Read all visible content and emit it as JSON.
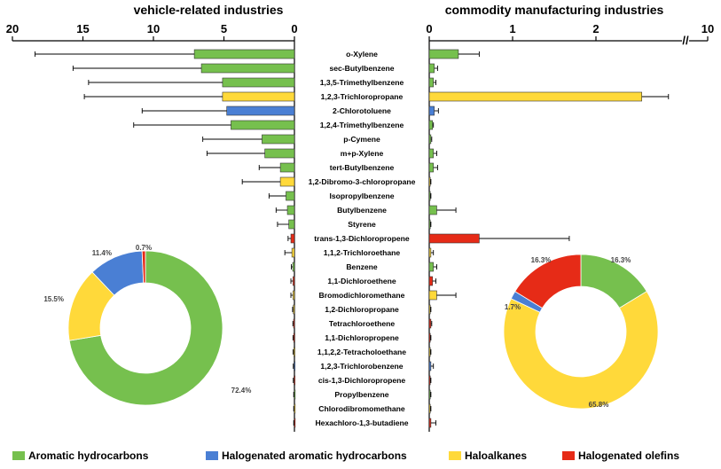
{
  "chart_data": {
    "type": "bar",
    "colors": {
      "Aromatic hydrocarbons": "#76c04e",
      "Halogenated aromatic hydrocarbons": "#4a7fd4",
      "Haloalkanes": "#ffd93a",
      "Halogenated olefins": "#e62b17"
    },
    "left_panel": {
      "title": "vehicle-related industries",
      "ticks": [
        "20",
        "15",
        "10",
        "5",
        "0"
      ],
      "xlim": [
        0,
        20
      ]
    },
    "right_panel": {
      "title": "commodity manufacturing industries",
      "ticks": [
        "0",
        "1",
        "2",
        "10"
      ],
      "axis_break": "//"
    },
    "categories": [
      "o-Xylene",
      "sec-Butylbenzene",
      "1,3,5-Trimethylbenzene",
      "1,2,3-Trichloropropane",
      "2-Chlorotoluene",
      "1,2,4-Trimethylbenzene",
      "p-Cymene",
      "m+p-Xylene",
      "tert-Butylbenzene",
      "1,2-Dibromo-3-chloropropane",
      "Isopropylbenzene",
      "Butylbenzene",
      "Styrene",
      "trans-1,3-Dichloropropene",
      "1,1,2-Trichloroethane",
      "Benzene",
      "1,1-Dichloroethene",
      "Bromodichloromethane",
      "1,2-Dichloropropane",
      "Tetrachloroethene",
      "1,1-Dichloropropene",
      "1,1,2,2-Tetracholoethane",
      "1,2,3-Trichlorobenzene",
      "cis-1,3-Dichloropropene",
      "Propylbenzene",
      "Chlorodibromomethane",
      "Hexachloro-1,3-butadiene"
    ],
    "groups": [
      "Aromatic hydrocarbons",
      "Aromatic hydrocarbons",
      "Aromatic hydrocarbons",
      "Haloalkanes",
      "Halogenated aromatic hydrocarbons",
      "Aromatic hydrocarbons",
      "Aromatic hydrocarbons",
      "Aromatic hydrocarbons",
      "Aromatic hydrocarbons",
      "Haloalkanes",
      "Aromatic hydrocarbons",
      "Aromatic hydrocarbons",
      "Aromatic hydrocarbons",
      "Halogenated olefins",
      "Haloalkanes",
      "Aromatic hydrocarbons",
      "Halogenated olefins",
      "Haloalkanes",
      "Haloalkanes",
      "Halogenated olefins",
      "Halogenated olefins",
      "Haloalkanes",
      "Halogenated aromatic hydrocarbons",
      "Halogenated olefins",
      "Aromatic hydrocarbons",
      "Haloalkanes",
      "Halogenated olefins"
    ],
    "vehicle_values": [
      7.1,
      6.6,
      5.1,
      5.1,
      4.8,
      4.5,
      2.3,
      2.1,
      1.0,
      1.0,
      0.6,
      0.5,
      0.4,
      0.25,
      0.18,
      0.12,
      0.1,
      0.1,
      0.08,
      0.06,
      0.05,
      0.04,
      0.03,
      0.03,
      0.02,
      0.02,
      0.02
    ],
    "vehicle_errors": [
      11.3,
      9.1,
      9.5,
      9.8,
      6.0,
      6.9,
      4.2,
      4.1,
      1.5,
      2.7,
      1.2,
      0.8,
      0.8,
      0.2,
      0.5,
      0.1,
      0.15,
      0.15,
      0.05,
      0.05,
      0.05,
      0.05,
      0.05,
      0.05,
      0.03,
      0.03,
      0.03
    ],
    "commodity_values": [
      0.35,
      0.06,
      0.05,
      2.55,
      0.06,
      0.04,
      0.02,
      0.05,
      0.05,
      0.01,
      0.01,
      0.09,
      0.01,
      0.6,
      0.02,
      0.05,
      0.04,
      0.09,
      0.01,
      0.02,
      0.01,
      0.01,
      0.02,
      0.01,
      0.01,
      0.01,
      0.02
    ],
    "commodity_errors": [
      0.25,
      0.04,
      0.03,
      0.32,
      0.05,
      0.01,
      0.01,
      0.04,
      0.05,
      0.01,
      0.01,
      0.23,
      0.01,
      1.08,
      0.03,
      0.04,
      0.04,
      0.23,
      0.01,
      0.01,
      0.01,
      0.01,
      0.03,
      0.01,
      0.01,
      0.01,
      0.06
    ],
    "pie_vehicle": [
      {
        "group": "Aromatic hydrocarbons",
        "value": 72.4,
        "label": "72.4%"
      },
      {
        "group": "Haloalkanes",
        "value": 15.5,
        "label": "15.5%"
      },
      {
        "group": "Halogenated aromatic hydrocarbons",
        "value": 11.4,
        "label": "11.4%"
      },
      {
        "group": "Halogenated olefins",
        "value": 0.7,
        "label": "0.7%"
      }
    ],
    "pie_commodity": [
      {
        "group": "Aromatic hydrocarbons",
        "value": 16.3,
        "label": "16.3%"
      },
      {
        "group": "Haloalkanes",
        "value": 65.8,
        "label": "65.8%"
      },
      {
        "group": "Halogenated aromatic hydrocarbons",
        "value": 1.7,
        "label": "1.7%"
      },
      {
        "group": "Halogenated olefins",
        "value": 16.3,
        "label": "16.3%"
      }
    ],
    "legend": [
      "Aromatic hydrocarbons",
      "Halogenated aromatic hydrocarbons",
      "Haloalkanes",
      "Halogenated olefins"
    ]
  }
}
